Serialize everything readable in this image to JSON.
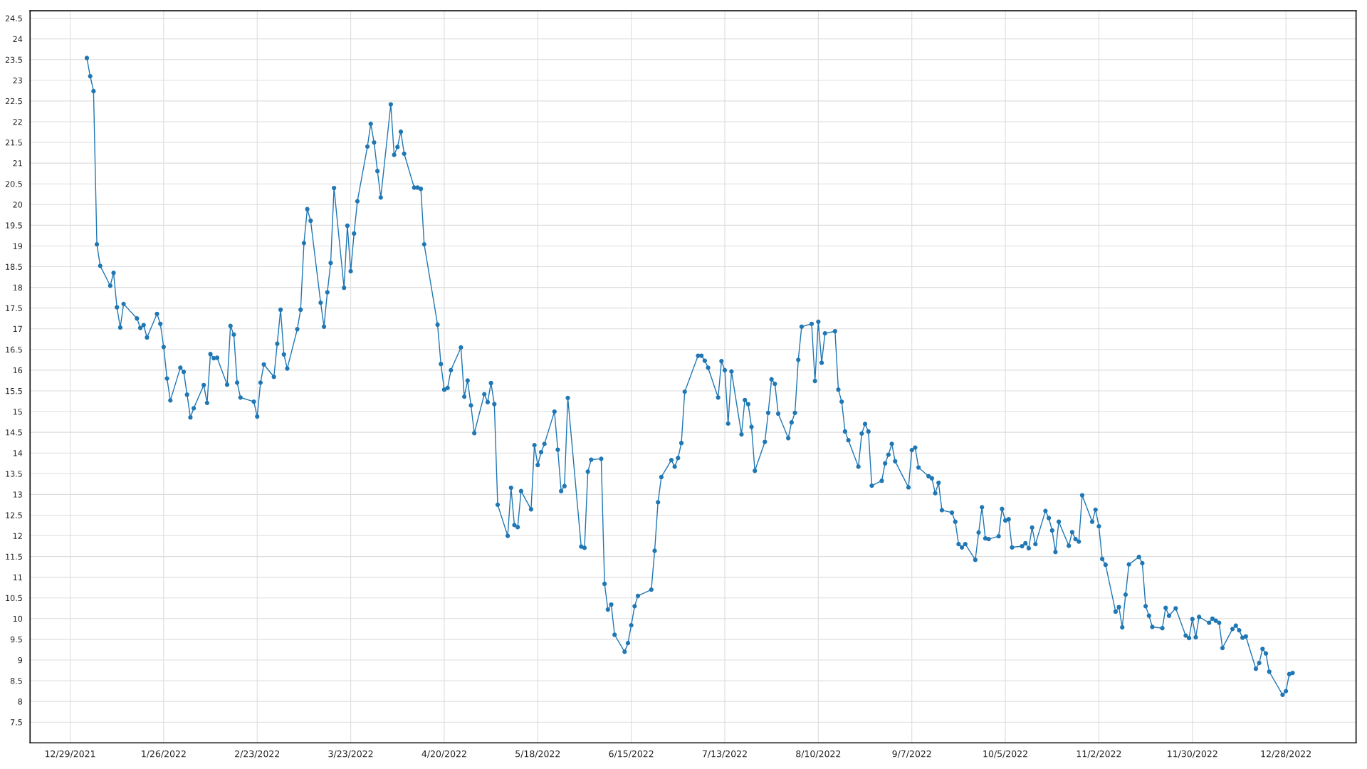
{
  "chart_data": {
    "type": "line",
    "xlim": [
      "2021-12-17",
      "2023-01-18"
    ],
    "xticks": [
      {
        "value": "2021-12-29",
        "label": "12/29/2021"
      },
      {
        "value": "2022-01-26",
        "label": "1/26/2022"
      },
      {
        "value": "2022-02-23",
        "label": "2/23/2022"
      },
      {
        "value": "2022-03-23",
        "label": "3/23/2022"
      },
      {
        "value": "2022-04-20",
        "label": "4/20/2022"
      },
      {
        "value": "2022-05-18",
        "label": "5/18/2022"
      },
      {
        "value": "2022-06-15",
        "label": "6/15/2022"
      },
      {
        "value": "2022-07-13",
        "label": "7/13/2022"
      },
      {
        "value": "2022-08-10",
        "label": "8/10/2022"
      },
      {
        "value": "2022-09-07",
        "label": "9/7/2022"
      },
      {
        "value": "2022-10-05",
        "label": "10/5/2022"
      },
      {
        "value": "2022-11-02",
        "label": "11/2/2022"
      },
      {
        "value": "2022-11-30",
        "label": "11/30/2022"
      },
      {
        "value": "2022-12-28",
        "label": "12/28/2022"
      }
    ],
    "ylim": [
      7.0,
      24.68
    ],
    "yticks": [
      7.5,
      8,
      8.5,
      9,
      9.5,
      10,
      10.5,
      11,
      11.5,
      12,
      12.5,
      13,
      13.5,
      14,
      14.5,
      15,
      15.5,
      16,
      16.5,
      17,
      17.5,
      18,
      18.5,
      19,
      19.5,
      20,
      20.5,
      21,
      21.5,
      22,
      22.5,
      23,
      23.5,
      24,
      24.5
    ],
    "grid": true,
    "marker": "circle",
    "line_style": "solid",
    "series": [
      {
        "color": "#1f77b4",
        "x": [
          "2022-01-03",
          "2022-01-04",
          "2022-01-05",
          "2022-01-06",
          "2022-01-07",
          "2022-01-10",
          "2022-01-11",
          "2022-01-12",
          "2022-01-13",
          "2022-01-14",
          "2022-01-18",
          "2022-01-19",
          "2022-01-20",
          "2022-01-21",
          "2022-01-24",
          "2022-01-25",
          "2022-01-26",
          "2022-01-27",
          "2022-01-28",
          "2022-01-31",
          "2022-02-01",
          "2022-02-02",
          "2022-02-03",
          "2022-02-04",
          "2022-02-07",
          "2022-02-08",
          "2022-02-09",
          "2022-02-10",
          "2022-02-11",
          "2022-02-14",
          "2022-02-15",
          "2022-02-16",
          "2022-02-17",
          "2022-02-18",
          "2022-02-22",
          "2022-02-23",
          "2022-02-24",
          "2022-02-25",
          "2022-02-28",
          "2022-03-01",
          "2022-03-02",
          "2022-03-03",
          "2022-03-04",
          "2022-03-07",
          "2022-03-08",
          "2022-03-09",
          "2022-03-10",
          "2022-03-11",
          "2022-03-14",
          "2022-03-15",
          "2022-03-16",
          "2022-03-17",
          "2022-03-18",
          "2022-03-21",
          "2022-03-22",
          "2022-03-23",
          "2022-03-24",
          "2022-03-25",
          "2022-03-28",
          "2022-03-29",
          "2022-03-30",
          "2022-03-31",
          "2022-04-01",
          "2022-04-04",
          "2022-04-05",
          "2022-04-06",
          "2022-04-07",
          "2022-04-08",
          "2022-04-11",
          "2022-04-12",
          "2022-04-13",
          "2022-04-14",
          "2022-04-18",
          "2022-04-19",
          "2022-04-20",
          "2022-04-21",
          "2022-04-22",
          "2022-04-25",
          "2022-04-26",
          "2022-04-27",
          "2022-04-28",
          "2022-04-29",
          "2022-05-02",
          "2022-05-03",
          "2022-05-04",
          "2022-05-05",
          "2022-05-06",
          "2022-05-09",
          "2022-05-10",
          "2022-05-11",
          "2022-05-12",
          "2022-05-13",
          "2022-05-16",
          "2022-05-17",
          "2022-05-18",
          "2022-05-19",
          "2022-05-20",
          "2022-05-23",
          "2022-05-24",
          "2022-05-25",
          "2022-05-26",
          "2022-05-27",
          "2022-05-31",
          "2022-06-01",
          "2022-06-02",
          "2022-06-03",
          "2022-06-06",
          "2022-06-07",
          "2022-06-08",
          "2022-06-09",
          "2022-06-10",
          "2022-06-13",
          "2022-06-14",
          "2022-06-15",
          "2022-06-16",
          "2022-06-17",
          "2022-06-21",
          "2022-06-22",
          "2022-06-23",
          "2022-06-24",
          "2022-06-27",
          "2022-06-28",
          "2022-06-29",
          "2022-06-30",
          "2022-07-01",
          "2022-07-05",
          "2022-07-06",
          "2022-07-07",
          "2022-07-08",
          "2022-07-11",
          "2022-07-12",
          "2022-07-13",
          "2022-07-14",
          "2022-07-15",
          "2022-07-18",
          "2022-07-19",
          "2022-07-20",
          "2022-07-21",
          "2022-07-22",
          "2022-07-25",
          "2022-07-26",
          "2022-07-27",
          "2022-07-28",
          "2022-07-29",
          "2022-08-01",
          "2022-08-02",
          "2022-08-03",
          "2022-08-04",
          "2022-08-05",
          "2022-08-08",
          "2022-08-09",
          "2022-08-10",
          "2022-08-11",
          "2022-08-12",
          "2022-08-15",
          "2022-08-16",
          "2022-08-17",
          "2022-08-18",
          "2022-08-19",
          "2022-08-22",
          "2022-08-23",
          "2022-08-24",
          "2022-08-25",
          "2022-08-26",
          "2022-08-29",
          "2022-08-30",
          "2022-08-31",
          "2022-09-01",
          "2022-09-02",
          "2022-09-06",
          "2022-09-07",
          "2022-09-08",
          "2022-09-09",
          "2022-09-12",
          "2022-09-13",
          "2022-09-14",
          "2022-09-15",
          "2022-09-16",
          "2022-09-19",
          "2022-09-20",
          "2022-09-21",
          "2022-09-22",
          "2022-09-23",
          "2022-09-26",
          "2022-09-27",
          "2022-09-28",
          "2022-09-29",
          "2022-09-30",
          "2022-10-03",
          "2022-10-04",
          "2022-10-05",
          "2022-10-06",
          "2022-10-07",
          "2022-10-10",
          "2022-10-11",
          "2022-10-12",
          "2022-10-13",
          "2022-10-14",
          "2022-10-17",
          "2022-10-18",
          "2022-10-19",
          "2022-10-20",
          "2022-10-21",
          "2022-10-24",
          "2022-10-25",
          "2022-10-26",
          "2022-10-27",
          "2022-10-28",
          "2022-10-31",
          "2022-11-01",
          "2022-11-02",
          "2022-11-03",
          "2022-11-04",
          "2022-11-07",
          "2022-11-08",
          "2022-11-09",
          "2022-11-10",
          "2022-11-11",
          "2022-11-14",
          "2022-11-15",
          "2022-11-16",
          "2022-11-17",
          "2022-11-18",
          "2022-11-21",
          "2022-11-22",
          "2022-11-23",
          "2022-11-25",
          "2022-11-28",
          "2022-11-29",
          "2022-11-30",
          "2022-12-01",
          "2022-12-02",
          "2022-12-05",
          "2022-12-06",
          "2022-12-07",
          "2022-12-08",
          "2022-12-09",
          "2022-12-12",
          "2022-12-13",
          "2022-12-14",
          "2022-12-15",
          "2022-12-16",
          "2022-12-19",
          "2022-12-20",
          "2022-12-21",
          "2022-12-22",
          "2022-12-23",
          "2022-12-27",
          "2022-12-28",
          "2022-12-29",
          "2022-12-30"
        ],
        "values": [
          23.54,
          23.1,
          22.74,
          19.04,
          18.52,
          18.04,
          18.35,
          17.52,
          17.03,
          17.6,
          17.25,
          17.02,
          17.09,
          16.79,
          17.36,
          17.12,
          16.56,
          15.8,
          15.27,
          16.06,
          15.96,
          15.41,
          14.86,
          15.08,
          15.64,
          15.21,
          16.39,
          16.29,
          16.3,
          15.65,
          17.07,
          16.86,
          15.7,
          15.34,
          15.24,
          14.88,
          15.7,
          16.14,
          15.84,
          16.64,
          17.46,
          16.38,
          16.04,
          16.99,
          17.46,
          19.07,
          19.89,
          19.61,
          17.63,
          17.05,
          17.88,
          18.59,
          20.4,
          17.99,
          19.49,
          18.39,
          19.3,
          20.08,
          21.4,
          21.95,
          21.5,
          20.81,
          20.17,
          22.42,
          21.2,
          21.39,
          21.76,
          21.23,
          20.41,
          20.41,
          20.38,
          19.04,
          17.1,
          16.15,
          15.53,
          15.57,
          16.0,
          16.55,
          15.36,
          15.75,
          15.15,
          14.48,
          15.42,
          15.23,
          15.69,
          15.18,
          12.75,
          12.0,
          13.16,
          12.26,
          12.21,
          13.08,
          12.64,
          14.19,
          13.71,
          14.02,
          14.22,
          15.0,
          14.08,
          13.08,
          13.2,
          15.33,
          11.74,
          11.71,
          13.55,
          13.84,
          13.86,
          10.84,
          10.22,
          10.34,
          9.61,
          9.2,
          9.41,
          9.84,
          10.3,
          10.55,
          10.7,
          11.64,
          12.81,
          13.42,
          13.83,
          13.67,
          13.88,
          14.24,
          15.48,
          16.35,
          16.35,
          16.23,
          16.06,
          15.34,
          16.22,
          16.0,
          14.71,
          15.97,
          14.45,
          15.28,
          15.18,
          14.63,
          13.57,
          14.27,
          14.97,
          15.78,
          15.67,
          14.95,
          14.36,
          14.74,
          14.97,
          16.25,
          17.05,
          17.12,
          15.74,
          17.17,
          16.18,
          16.89,
          16.94,
          15.53,
          15.24,
          14.52,
          14.31,
          13.67,
          14.47,
          14.7,
          14.52,
          13.21,
          13.33,
          13.75,
          13.96,
          14.22,
          13.8,
          13.17,
          14.07,
          14.13,
          13.65,
          13.44,
          13.39,
          13.03,
          13.28,
          12.62,
          12.56,
          12.34,
          11.8,
          11.72,
          11.8,
          11.42,
          12.08,
          12.69,
          11.94,
          11.92,
          11.99,
          12.65,
          12.37,
          12.4,
          11.72,
          11.75,
          11.82,
          11.7,
          12.2,
          11.8,
          12.6,
          12.43,
          12.13,
          11.61,
          12.34,
          11.76,
          12.09,
          11.92,
          11.86,
          12.98,
          12.34,
          12.63,
          12.23,
          11.44,
          11.3,
          10.17,
          10.28,
          9.79,
          10.58,
          11.31,
          11.49,
          11.34,
          10.3,
          10.07,
          9.8,
          9.77,
          10.26,
          10.07,
          10.25,
          9.59,
          9.53,
          9.99,
          9.55,
          10.04,
          9.9,
          10.0,
          9.95,
          9.9,
          9.29,
          9.75,
          9.83,
          9.72,
          9.54,
          9.57,
          8.79,
          8.93,
          9.27,
          9.16,
          8.72,
          8.16,
          8.25,
          8.66,
          8.69
        ]
      }
    ]
  }
}
